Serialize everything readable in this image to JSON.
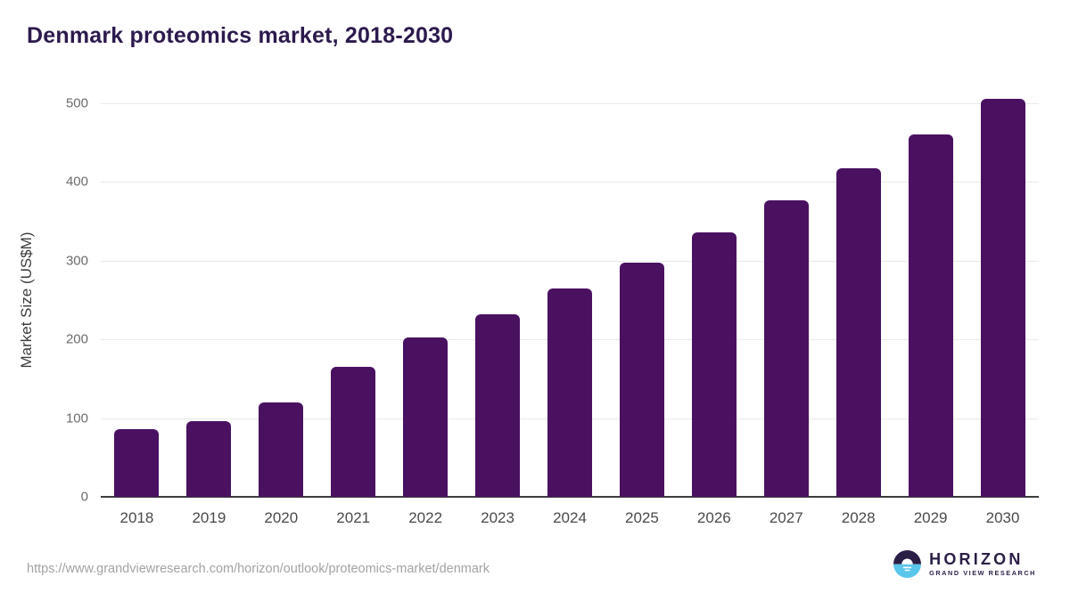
{
  "title": "Denmark proteomics market, 2018-2030",
  "chart_data": {
    "type": "bar",
    "categories": [
      "2018",
      "2019",
      "2020",
      "2021",
      "2022",
      "2023",
      "2024",
      "2025",
      "2026",
      "2027",
      "2028",
      "2029",
      "2030"
    ],
    "values": [
      86,
      96,
      120,
      165,
      202,
      232,
      265,
      298,
      336,
      377,
      418,
      460,
      506
    ],
    "title": "Denmark proteomics market, 2018-2030",
    "xlabel": "",
    "ylabel": "Market Size (US$M)",
    "ylim": [
      0,
      500
    ],
    "yticks": [
      0,
      100,
      200,
      300,
      400,
      500
    ],
    "grid": "horizontal-only",
    "legend": "none",
    "bar_color": "#4a1161"
  },
  "colors": {
    "bar": "#4a1161",
    "title_text": "#2c1a4d",
    "gridline": "#e9e9e9",
    "axis_line": "#3d3d3d",
    "tick_text": "#6b6b6b",
    "category_text": "#4a4a4a",
    "url_text": "#a3a3a3",
    "logo_dark": "#2b1e46",
    "logo_blue": "#5ac6ec"
  },
  "footer": {
    "source_url": "https://www.grandviewresearch.com/horizon/outlook/proteomics-market/denmark",
    "logo_name": "HORIZON",
    "logo_tagline": "GRAND VIEW RESEARCH"
  }
}
